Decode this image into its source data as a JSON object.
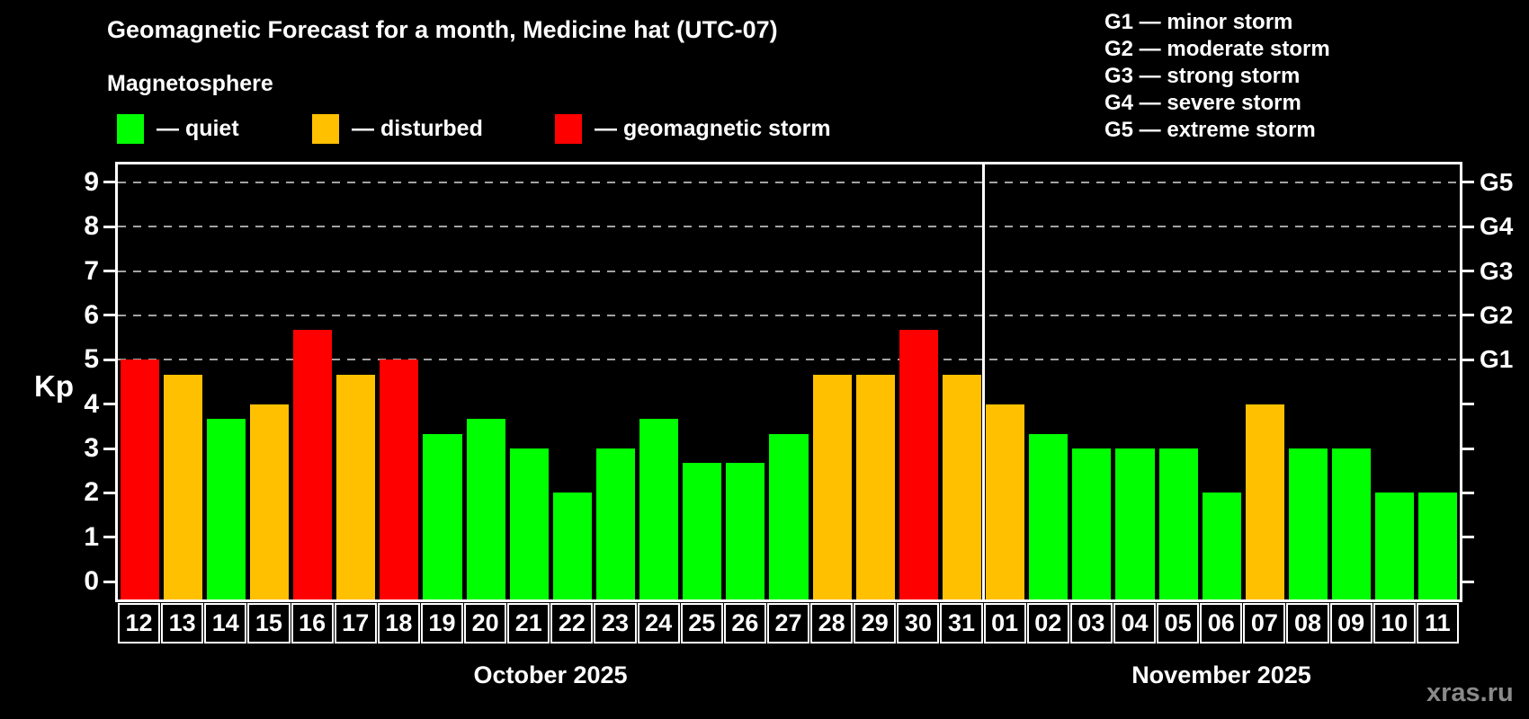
{
  "title": "Geomagnetic Forecast for a month, Medicine hat (UTC-07)",
  "subtitle": "Magnetosphere",
  "legend": {
    "items": [
      {
        "status": "quiet",
        "label": "— quiet",
        "color": "#00ff00"
      },
      {
        "status": "disturbed",
        "label": "— disturbed",
        "color": "#ffc000"
      },
      {
        "status": "storm",
        "label": "— geomagnetic storm",
        "color": "#ff0000"
      }
    ]
  },
  "g_scale": [
    {
      "code": "G1",
      "kp": 5,
      "text": "G1 — minor storm"
    },
    {
      "code": "G2",
      "kp": 6,
      "text": "G2 — moderate storm"
    },
    {
      "code": "G3",
      "kp": 7,
      "text": "G3 — strong storm"
    },
    {
      "code": "G4",
      "kp": 8,
      "text": "G4 — severe storm"
    },
    {
      "code": "G5",
      "kp": 9,
      "text": "G5 — extreme storm"
    }
  ],
  "colors": {
    "quiet": "#00ff00",
    "disturbed": "#ffc000",
    "storm": "#ff0000",
    "grid": "#a3a3a3",
    "watermark": "#8a8a8a"
  },
  "watermark": "xras.ru",
  "chart_data": {
    "type": "bar",
    "ylabel": "Kp",
    "ylim": [
      0,
      9
    ],
    "yticks": [
      0,
      1,
      2,
      3,
      4,
      5,
      6,
      7,
      8,
      9
    ],
    "grid_kp": [
      5,
      6,
      7,
      8,
      9
    ],
    "legend_position": "top-left",
    "sections": [
      {
        "month_label": "October 2025",
        "days": [
          {
            "date": "12",
            "kp": 5.0,
            "status": "storm"
          },
          {
            "date": "13",
            "kp": 4.67,
            "status": "disturbed"
          },
          {
            "date": "14",
            "kp": 3.67,
            "status": "quiet"
          },
          {
            "date": "15",
            "kp": 4.0,
            "status": "disturbed"
          },
          {
            "date": "16",
            "kp": 5.67,
            "status": "storm"
          },
          {
            "date": "17",
            "kp": 4.67,
            "status": "disturbed"
          },
          {
            "date": "18",
            "kp": 5.0,
            "status": "storm"
          },
          {
            "date": "19",
            "kp": 3.33,
            "status": "quiet"
          },
          {
            "date": "20",
            "kp": 3.67,
            "status": "quiet"
          },
          {
            "date": "21",
            "kp": 3.0,
            "status": "quiet"
          },
          {
            "date": "22",
            "kp": 2.0,
            "status": "quiet"
          },
          {
            "date": "23",
            "kp": 3.0,
            "status": "quiet"
          },
          {
            "date": "24",
            "kp": 3.67,
            "status": "quiet"
          },
          {
            "date": "25",
            "kp": 2.67,
            "status": "quiet"
          },
          {
            "date": "26",
            "kp": 2.67,
            "status": "quiet"
          },
          {
            "date": "27",
            "kp": 3.33,
            "status": "quiet"
          },
          {
            "date": "28",
            "kp": 4.67,
            "status": "disturbed"
          },
          {
            "date": "29",
            "kp": 4.67,
            "status": "disturbed"
          },
          {
            "date": "30",
            "kp": 5.67,
            "status": "storm"
          },
          {
            "date": "31",
            "kp": 4.67,
            "status": "disturbed"
          }
        ]
      },
      {
        "month_label": "November 2025",
        "days": [
          {
            "date": "01",
            "kp": 4.0,
            "status": "disturbed"
          },
          {
            "date": "02",
            "kp": 3.33,
            "status": "quiet"
          },
          {
            "date": "03",
            "kp": 3.0,
            "status": "quiet"
          },
          {
            "date": "04",
            "kp": 3.0,
            "status": "quiet"
          },
          {
            "date": "05",
            "kp": 3.0,
            "status": "quiet"
          },
          {
            "date": "06",
            "kp": 2.0,
            "status": "quiet"
          },
          {
            "date": "07",
            "kp": 4.0,
            "status": "disturbed"
          },
          {
            "date": "08",
            "kp": 3.0,
            "status": "quiet"
          },
          {
            "date": "09",
            "kp": 3.0,
            "status": "quiet"
          },
          {
            "date": "10",
            "kp": 2.0,
            "status": "quiet"
          },
          {
            "date": "11",
            "kp": 2.0,
            "status": "quiet"
          }
        ]
      }
    ]
  }
}
